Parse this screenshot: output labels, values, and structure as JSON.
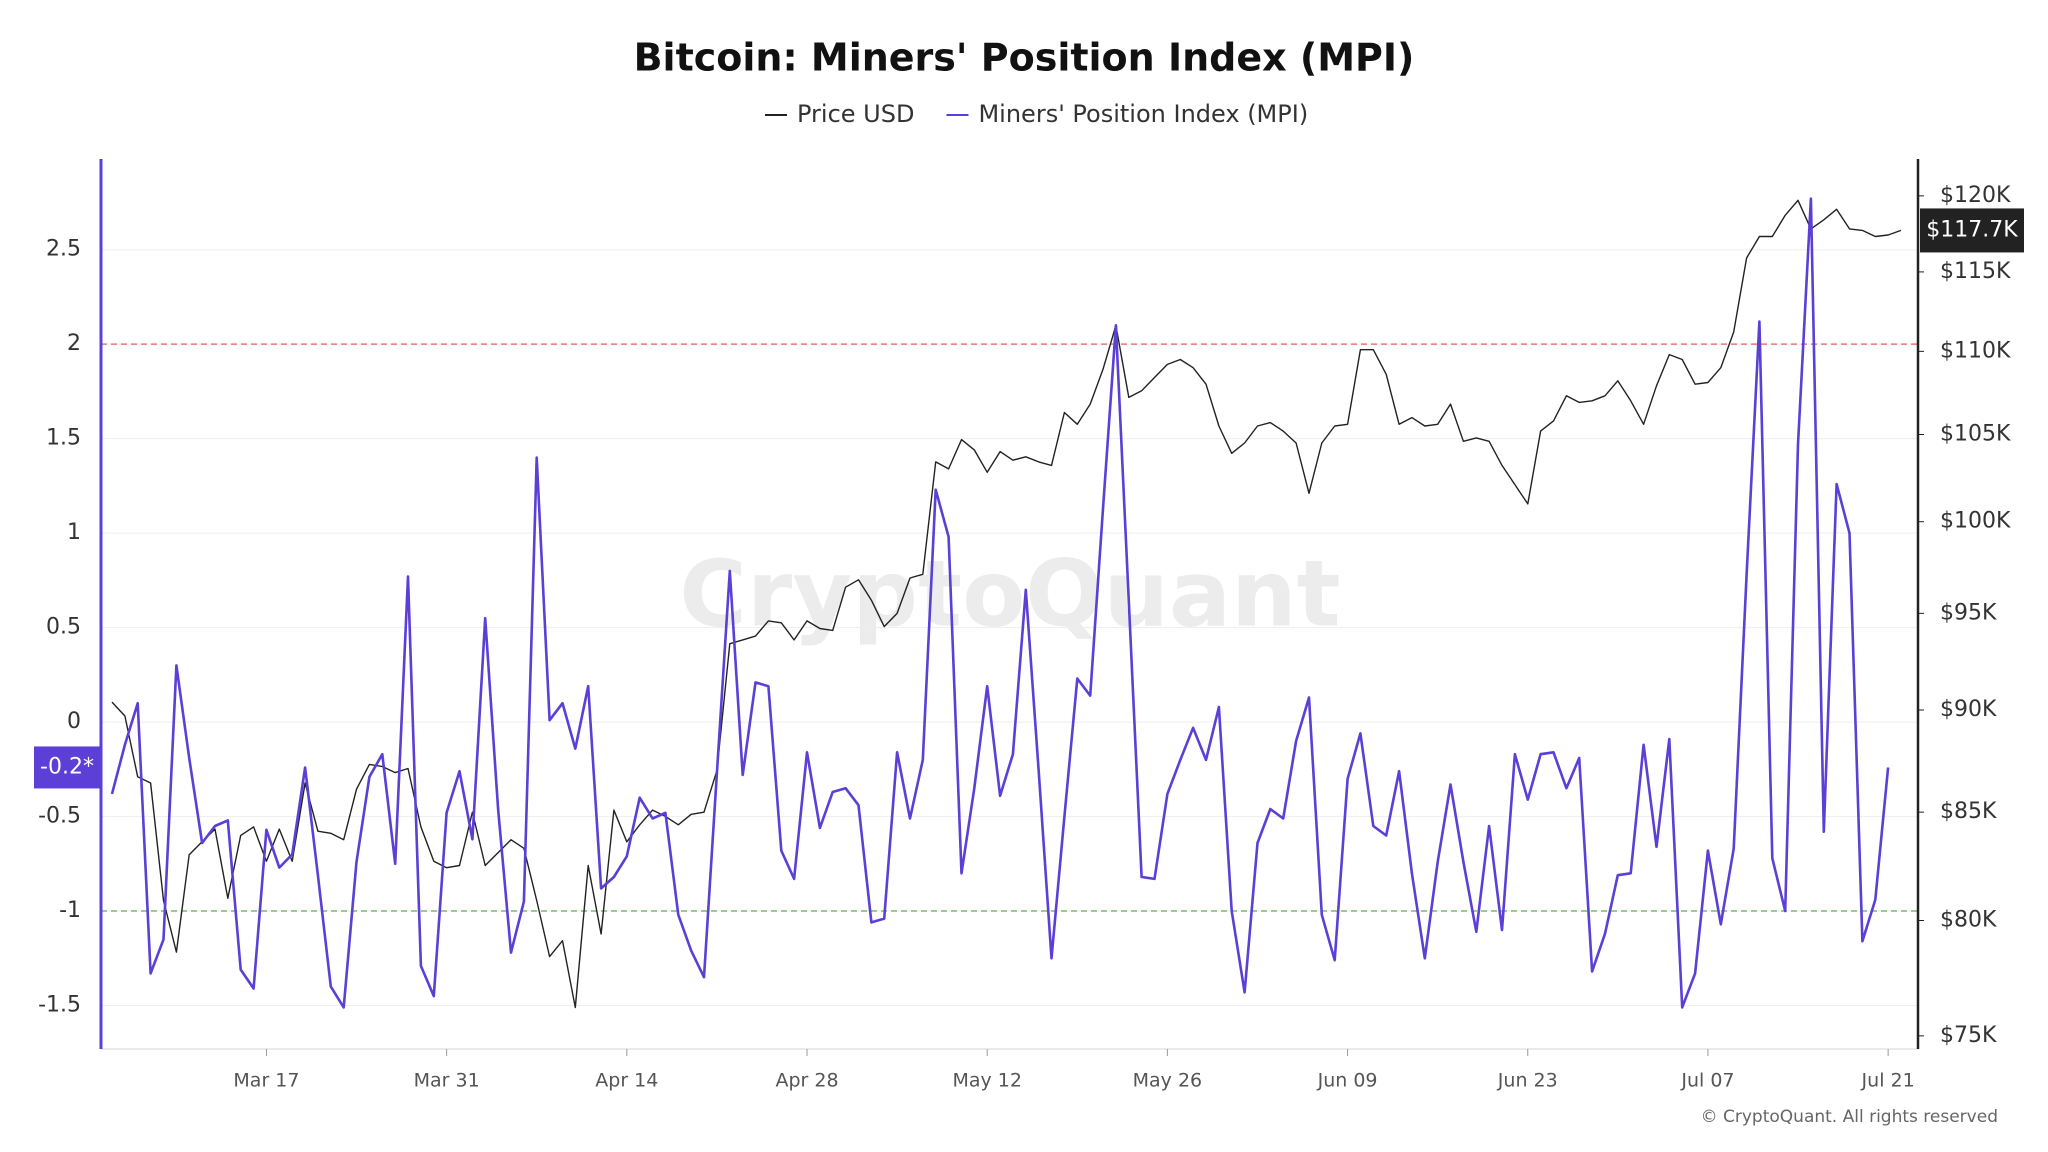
{
  "chart_data": {
    "type": "line",
    "title": "Bitcoin: Miners' Position Index (MPI)",
    "watermark": "CryptoQuant",
    "credit": "© CryptoQuant. All rights reserved",
    "legend": "top",
    "grid": true,
    "categories": [
      null,
      null,
      null,
      null,
      null,
      null,
      null,
      null,
      null,
      null,
      null,
      null,
      "Mar 17",
      null,
      null,
      null,
      null,
      null,
      null,
      null,
      null,
      null,
      null,
      null,
      null,
      null,
      "Mar 31",
      null,
      null,
      null,
      null,
      null,
      null,
      null,
      null,
      null,
      null,
      null,
      null,
      null,
      "Apr 14",
      null,
      null,
      null,
      null,
      null,
      null,
      null,
      null,
      null,
      null,
      null,
      null,
      null,
      "Apr 28",
      null,
      null,
      null,
      null,
      null,
      null,
      null,
      null,
      null,
      null,
      null,
      null,
      null,
      "May 12",
      null,
      null,
      null,
      null,
      null,
      null,
      null,
      null,
      null,
      null,
      null,
      null,
      null,
      "May 26",
      null,
      null,
      null,
      null,
      null,
      null,
      null,
      null,
      null,
      null,
      null,
      null,
      null,
      "Jun 09",
      null,
      null,
      null,
      null,
      null,
      null,
      null,
      null,
      null,
      null,
      null,
      null,
      null,
      "Jun 23",
      null,
      null,
      null,
      null,
      null,
      null,
      null,
      null,
      null,
      null,
      null,
      null,
      null,
      "Jul 07",
      null,
      null,
      null,
      null,
      null,
      null,
      null,
      null,
      null,
      null,
      null,
      null,
      null,
      "Jul 21",
      null
    ],
    "ylim": [
      -1.73,
      2.98
    ],
    "yticks": [
      -1.5,
      -1,
      -0.5,
      0,
      0.5,
      1,
      1.5,
      2,
      2.5
    ],
    "y2scale": "log",
    "y2lim": [
      74450,
      122500
    ],
    "y2ticks": [
      {
        "value": 75000,
        "label": "$75K"
      },
      {
        "value": 80000,
        "label": "$80K"
      },
      {
        "value": 85000,
        "label": "$85K"
      },
      {
        "value": 90000,
        "label": "$90K"
      },
      {
        "value": 95000,
        "label": "$95K"
      },
      {
        "value": 100000,
        "label": "$100K"
      },
      {
        "value": 105000,
        "label": "$105K"
      },
      {
        "value": 110000,
        "label": "$110K"
      },
      {
        "value": 115000,
        "label": "$115K"
      },
      {
        "value": 120000,
        "label": "$120K"
      }
    ],
    "reference_lines": [
      {
        "value": 2,
        "color": "#e07a7a"
      },
      {
        "value": -1,
        "color": "#7cb86e"
      }
    ],
    "series": [
      {
        "name": "Price USD",
        "color": "#222222",
        "axis": "y2",
        "end_label": "$117.7K",
        "values": [
          90400,
          89700,
          86700,
          86400,
          80900,
          78600,
          83000,
          83600,
          84200,
          81000,
          83900,
          84300,
          82700,
          84200,
          82700,
          86400,
          84100,
          84000,
          83700,
          86100,
          87300,
          87200,
          86900,
          87100,
          84300,
          82700,
          82400,
          82500,
          85000,
          82500,
          83100,
          83700,
          83300,
          80900,
          78400,
          79100,
          76200,
          82500,
          79400,
          85100,
          83600,
          84400,
          85100,
          84800,
          84400,
          84900,
          85000,
          87000,
          93400,
          93600,
          93800,
          94600,
          94500,
          93600,
          94600,
          94200,
          94100,
          96400,
          96800,
          95700,
          94300,
          95000,
          96900,
          97100,
          103400,
          103000,
          104700,
          104100,
          102800,
          104000,
          103500,
          103700,
          103400,
          103200,
          106300,
          105600,
          106800,
          108900,
          111600,
          107200,
          107600,
          108400,
          109200,
          109500,
          109000,
          108000,
          105500,
          103900,
          104500,
          105500,
          105700,
          105200,
          104500,
          101600,
          104500,
          105500,
          105600,
          110100,
          110100,
          108600,
          105600,
          106000,
          105500,
          105600,
          106800,
          104600,
          104800,
          104600,
          103200,
          102100,
          101000,
          105200,
          105800,
          107300,
          106900,
          107000,
          107300,
          108200,
          107000,
          105600,
          107900,
          109800,
          109500,
          108000,
          108100,
          109000,
          111200,
          115900,
          117300,
          117300,
          118700,
          119700,
          117800,
          118400,
          119100,
          117800,
          117700,
          117300,
          117400,
          117700
        ]
      },
      {
        "name": "Miners' Position Index (MPI)",
        "color": "#5b3fd6",
        "end_label": "-0.2*",
        "values": [
          -0.38,
          -0.12,
          0.1,
          -1.33,
          -1.15,
          0.3,
          -0.19,
          -0.64,
          -0.55,
          -0.52,
          -1.31,
          -1.41,
          -0.57,
          -0.77,
          -0.7,
          -0.24,
          -0.81,
          -1.4,
          -1.51,
          -0.74,
          -0.29,
          -0.17,
          -0.75,
          0.77,
          -1.29,
          -1.45,
          -0.48,
          -0.26,
          -0.62,
          0.55,
          -0.46,
          -1.22,
          -0.95,
          1.4,
          0.01,
          0.1,
          -0.14,
          0.19,
          -0.88,
          -0.82,
          -0.71,
          -0.4,
          -0.51,
          -0.48,
          -1.02,
          -1.21,
          -1.35,
          -0.27,
          0.8,
          -0.28,
          0.21,
          0.19,
          -0.68,
          -0.83,
          -0.16,
          -0.56,
          -0.37,
          -0.35,
          -0.44,
          -1.06,
          -1.04,
          -0.16,
          -0.51,
          -0.2,
          1.23,
          0.98,
          -0.8,
          -0.35,
          0.19,
          -0.39,
          -0.17,
          0.7,
          -0.26,
          -1.25,
          -0.5,
          0.23,
          0.14,
          1.13,
          2.1,
          0.64,
          -0.82,
          -0.83,
          -0.38,
          -0.2,
          -0.03,
          -0.2,
          0.08,
          -1,
          -1.43,
          -0.64,
          -0.46,
          -0.51,
          -0.1,
          0.13,
          -1.02,
          -1.26,
          -0.3,
          -0.06,
          -0.55,
          -0.6,
          -0.26,
          -0.8,
          -1.25,
          -0.74,
          -0.33,
          -0.74,
          -1.11,
          -0.55,
          -1.1,
          -0.17,
          -0.41,
          -0.17,
          -0.16,
          -0.35,
          -0.19,
          -1.32,
          -1.12,
          -0.81,
          -0.8,
          -0.12,
          -0.66,
          -0.09,
          -1.51,
          -1.33,
          -0.68,
          -1.07,
          -0.67,
          0.78,
          2.12,
          -0.72,
          -1,
          1.47,
          2.77,
          -0.58,
          1.26,
          1,
          -1.16,
          -0.94,
          -0.24,
          null
        ]
      }
    ]
  }
}
